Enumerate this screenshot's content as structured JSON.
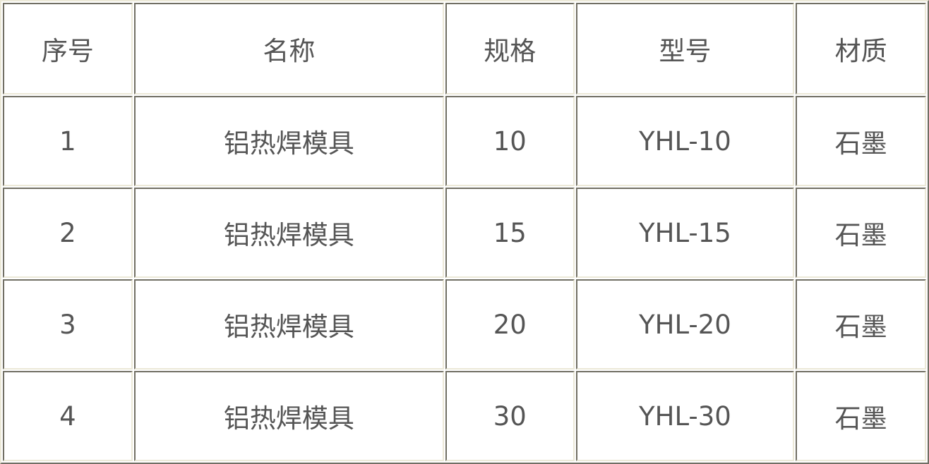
{
  "table": {
    "headers": [
      "序号",
      "名称",
      "规格",
      "型号",
      "材质"
    ],
    "rows": [
      [
        "1",
        "铝热焊模具",
        "10",
        "YHL-10",
        "石墨"
      ],
      [
        "2",
        "铝热焊模具",
        "15",
        "YHL-15",
        "石墨"
      ],
      [
        "3",
        "铝热焊模具",
        "20",
        "YHL-20",
        "石墨"
      ],
      [
        "4",
        "铝热焊模具",
        "30",
        "YHL-30",
        "石墨"
      ]
    ]
  }
}
